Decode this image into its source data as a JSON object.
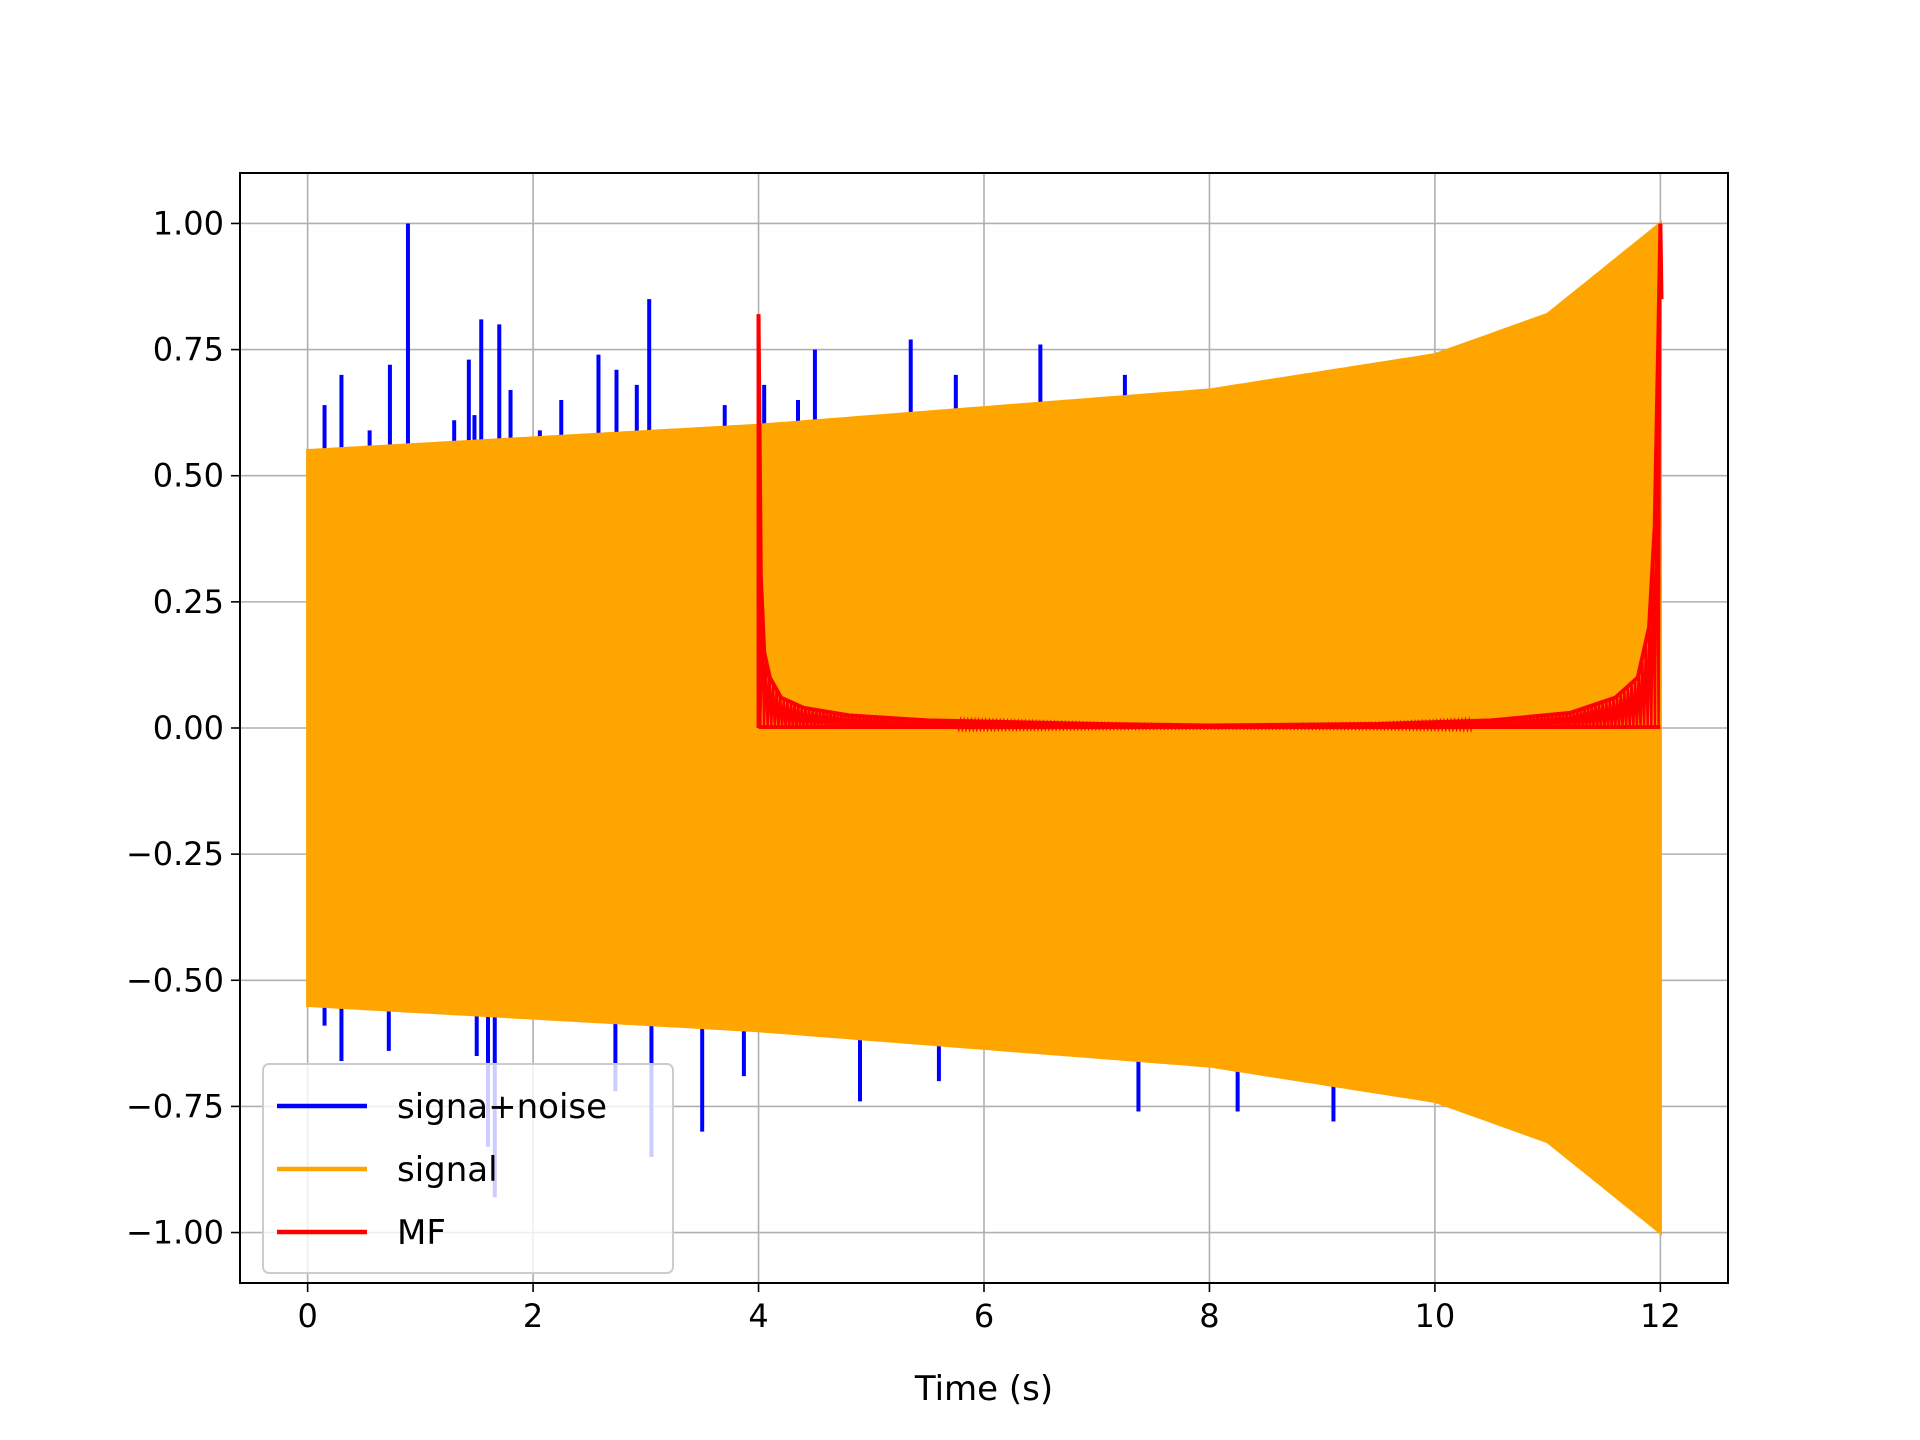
{
  "chart_data": {
    "type": "line",
    "title": "",
    "xlabel": "Time (s)",
    "ylabel": "",
    "xlim": [
      -0.6,
      12.6
    ],
    "ylim": [
      -1.1,
      1.1
    ],
    "grid": true,
    "legend_position": "lower-left",
    "x_ticks": [
      0,
      2,
      4,
      6,
      8,
      10,
      12
    ],
    "x_tick_labels": [
      "0",
      "2",
      "4",
      "6",
      "8",
      "10",
      "12"
    ],
    "y_ticks": [
      1.0,
      0.75,
      0.5,
      0.25,
      0.0,
      -0.25,
      -0.5,
      -0.75,
      -1.0
    ],
    "y_tick_labels": [
      "1.00",
      "0.75",
      "0.50",
      "0.25",
      "0.00",
      "−0.25",
      "−0.50",
      "−0.75",
      "−1.00"
    ],
    "series": [
      {
        "name": "signa+noise",
        "color": "#0000ff",
        "x_range": [
          0,
          12
        ],
        "baseline_envelope": {
          "x": [
            0,
            4,
            8,
            10,
            11,
            12
          ],
          "amplitude": [
            0.55,
            0.6,
            0.67,
            0.74,
            0.82,
            1.0
          ]
        },
        "spikes": [
          {
            "x": 0.15,
            "y": 0.64
          },
          {
            "x": 0.3,
            "y": 0.7
          },
          {
            "x": 0.55,
            "y": 0.59
          },
          {
            "x": 0.73,
            "y": 0.72
          },
          {
            "x": 0.89,
            "y": 1.0
          },
          {
            "x": 1.3,
            "y": 0.61
          },
          {
            "x": 1.43,
            "y": 0.73
          },
          {
            "x": 1.48,
            "y": 0.62
          },
          {
            "x": 1.54,
            "y": 0.81
          },
          {
            "x": 1.7,
            "y": 0.8
          },
          {
            "x": 1.8,
            "y": 0.67
          },
          {
            "x": 2.06,
            "y": 0.59
          },
          {
            "x": 2.25,
            "y": 0.65
          },
          {
            "x": 2.58,
            "y": 0.74
          },
          {
            "x": 2.74,
            "y": 0.71
          },
          {
            "x": 2.92,
            "y": 0.68
          },
          {
            "x": 3.03,
            "y": 0.85
          },
          {
            "x": 3.7,
            "y": 0.64
          },
          {
            "x": 4.05,
            "y": 0.68
          },
          {
            "x": 4.35,
            "y": 0.65
          },
          {
            "x": 4.5,
            "y": 0.75
          },
          {
            "x": 5.35,
            "y": 0.77
          },
          {
            "x": 5.75,
            "y": 0.7
          },
          {
            "x": 6.5,
            "y": 0.76
          },
          {
            "x": 7.25,
            "y": 0.7
          },
          {
            "x": 0.15,
            "y": -0.59
          },
          {
            "x": 0.3,
            "y": -0.66
          },
          {
            "x": 0.72,
            "y": -0.64
          },
          {
            "x": 1.5,
            "y": -0.65
          },
          {
            "x": 1.6,
            "y": -0.83
          },
          {
            "x": 1.66,
            "y": -0.93
          },
          {
            "x": 2.73,
            "y": -0.72
          },
          {
            "x": 3.05,
            "y": -0.85
          },
          {
            "x": 3.5,
            "y": -0.8
          },
          {
            "x": 3.87,
            "y": -0.69
          },
          {
            "x": 4.9,
            "y": -0.74
          },
          {
            "x": 5.6,
            "y": -0.7
          },
          {
            "x": 7.37,
            "y": -0.76
          },
          {
            "x": 8.25,
            "y": -0.76
          },
          {
            "x": 9.1,
            "y": -0.78
          }
        ]
      },
      {
        "name": "signal",
        "color": "#ffa500",
        "x_range": [
          0,
          12
        ],
        "envelope": {
          "x": [
            0,
            4,
            8,
            10,
            11,
            12
          ],
          "amplitude": [
            0.55,
            0.6,
            0.67,
            0.74,
            0.82,
            1.0
          ]
        }
      },
      {
        "name": "MF",
        "color": "#ff0000",
        "x_range": [
          4,
          12
        ],
        "points": [
          {
            "x": 4.0,
            "y": 0.82
          },
          {
            "x": 4.02,
            "y": 0.3
          },
          {
            "x": 4.05,
            "y": 0.15
          },
          {
            "x": 4.1,
            "y": 0.1
          },
          {
            "x": 4.2,
            "y": 0.06
          },
          {
            "x": 4.4,
            "y": 0.04
          },
          {
            "x": 4.8,
            "y": 0.025
          },
          {
            "x": 5.5,
            "y": 0.015
          },
          {
            "x": 7.0,
            "y": 0.008
          },
          {
            "x": 8.0,
            "y": 0.005
          },
          {
            "x": 9.5,
            "y": 0.008
          },
          {
            "x": 10.5,
            "y": 0.015
          },
          {
            "x": 11.2,
            "y": 0.03
          },
          {
            "x": 11.6,
            "y": 0.06
          },
          {
            "x": 11.8,
            "y": 0.1
          },
          {
            "x": 11.9,
            "y": 0.2
          },
          {
            "x": 11.95,
            "y": 0.4
          },
          {
            "x": 11.98,
            "y": 0.75
          },
          {
            "x": 12.0,
            "y": 1.0
          },
          {
            "x": 12.01,
            "y": 0.85
          }
        ]
      }
    ]
  }
}
